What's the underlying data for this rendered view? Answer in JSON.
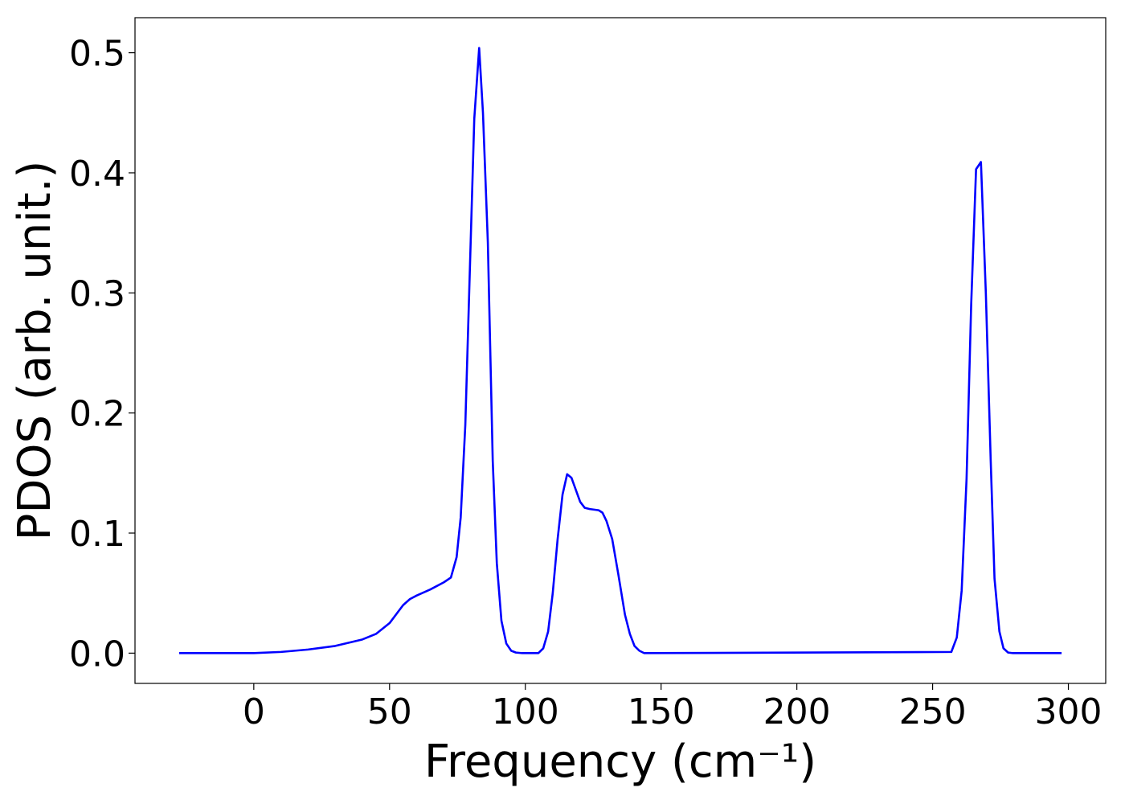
{
  "chart_data": {
    "type": "line",
    "xlabel": "Frequency (cm⁻¹)",
    "ylabel": "PDOS (arb. unit.)",
    "x": [
      -27.5,
      0,
      10,
      20,
      30,
      40,
      45,
      50,
      55,
      57.5,
      60,
      65,
      70,
      72.6,
      74.7,
      76.2,
      77.9,
      81.2,
      83,
      84.4,
      86.2,
      88,
      89.5,
      91.2,
      93,
      94.8,
      96.5,
      98.9,
      104.8,
      106.6,
      108.4,
      110.1,
      111.9,
      113.7,
      115.4,
      117,
      120.2,
      121.9,
      123.7,
      127,
      128.4,
      129.9,
      132,
      134.3,
      136.7,
      138.5,
      140.2,
      142,
      143.8,
      256.9,
      258.9,
      260.7,
      262.5,
      264.2,
      266,
      267.8,
      269.6,
      271.4,
      272.8,
      274.6,
      276.1,
      277.8,
      279.6,
      297.5
    ],
    "values": [
      0,
      0,
      0.001,
      0.003,
      0.006,
      0.0114,
      0.016,
      0.025,
      0.04,
      0.045,
      0.048,
      0.053,
      0.059,
      0.063,
      0.08,
      0.113,
      0.19,
      0.445,
      0.504,
      0.45,
      0.342,
      0.16,
      0.075,
      0.027,
      0.008,
      0.002,
      0.0005,
      0,
      0,
      0.004,
      0.018,
      0.05,
      0.095,
      0.132,
      0.149,
      0.146,
      0.126,
      0.121,
      0.12,
      0.119,
      0.117,
      0.11,
      0.095,
      0.065,
      0.032,
      0.016,
      0.006,
      0.002,
      0,
      0.001,
      0.013,
      0.052,
      0.145,
      0.29,
      0.403,
      0.409,
      0.3,
      0.16,
      0.062,
      0.018,
      0.004,
      0.0005,
      0,
      0
    ],
    "color": "#0000ff",
    "xlim": [
      -43.75,
      313.75
    ],
    "xticks": [
      0,
      50,
      100,
      150,
      200,
      250,
      300
    ],
    "ylim": [
      -0.0252,
      0.5292
    ],
    "yticks": [
      {
        "value": 0,
        "label": "0.0"
      },
      0.1,
      0.2,
      0.3,
      0.4,
      0.5
    ]
  }
}
